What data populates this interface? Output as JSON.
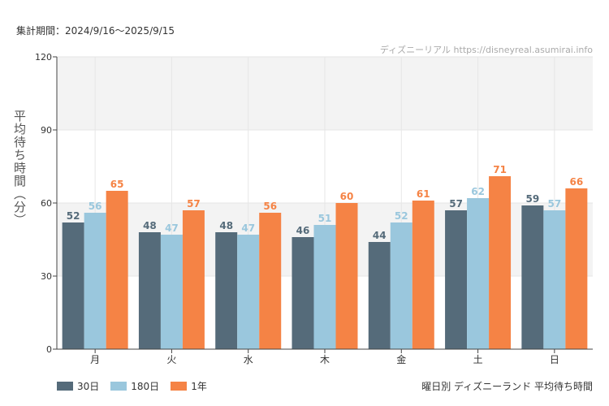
{
  "header": {
    "period": "集計期間：2024/9/16〜2025/9/15",
    "watermark": "ディズニーリアル https://disneyreal.asumirai.info"
  },
  "caption": "曜日別 ディズニーランド 平均待ち時間",
  "colors": {
    "s30": "#556b7a",
    "s180": "#9ac7dd",
    "s1y": "#f58345",
    "band": "#f3f3f3",
    "grid": "#e6e6e6",
    "axis": "#444444"
  },
  "chart_data": {
    "type": "bar",
    "categories": [
      "月",
      "火",
      "水",
      "木",
      "金",
      "土",
      "日"
    ],
    "series": [
      {
        "name": "30日",
        "values": [
          52,
          48,
          48,
          46,
          44,
          57,
          59
        ],
        "color": "#556b7a"
      },
      {
        "name": "180日",
        "values": [
          56,
          47,
          47,
          51,
          52,
          62,
          57
        ],
        "color": "#9ac7dd"
      },
      {
        "name": "1年",
        "values": [
          65,
          57,
          56,
          60,
          61,
          71,
          66
        ],
        "color": "#f58345"
      }
    ],
    "ylabel": "平均待ち時間（分）",
    "xlabel": "",
    "ylim": [
      0,
      120
    ],
    "yticks": [
      0,
      30,
      60,
      90,
      120
    ],
    "grid": true,
    "legend": "bottom-left"
  }
}
